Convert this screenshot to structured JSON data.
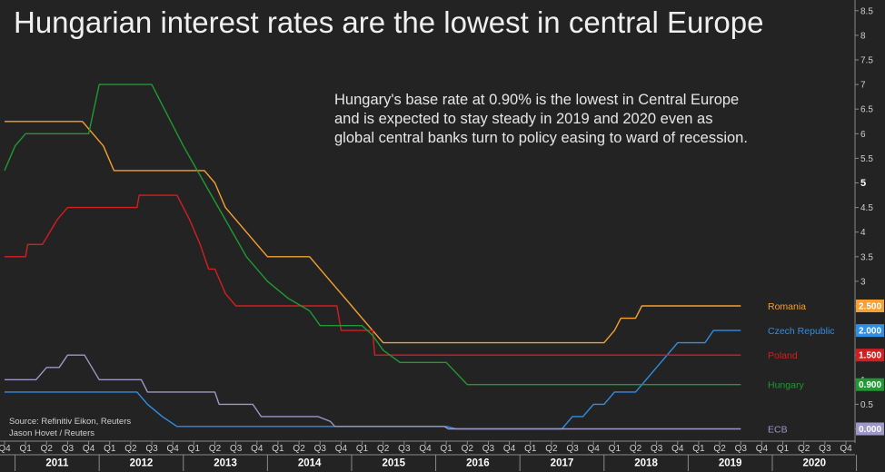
{
  "title": "Hungarian interest rates are the lowest in central Europe",
  "annotation": [
    "Hungary's base rate at 0.90% is the lowest in Central Europe",
    "and is expected to stay steady in 2019 and 2020 even as",
    "global central banks turn to policy easing to ward of recession."
  ],
  "source": [
    "Source: Refinitiv Eikon, Reuters",
    "Jason Hovet / Reuters"
  ],
  "chart_data": {
    "type": "line",
    "y_ticks": [
      "0",
      "0.5",
      "1",
      "1.5",
      "2",
      "2.5",
      "3",
      "3.5",
      "4",
      "4.5",
      "5",
      "5.5",
      "6",
      "6.5",
      "7",
      "7.5",
      "8",
      "8.5"
    ],
    "ylim": [
      0,
      8.5
    ],
    "x_quarters": [
      "Q4",
      "Q1",
      "Q2",
      "Q3",
      "Q4",
      "Q1",
      "Q2",
      "Q3",
      "Q4",
      "Q1",
      "Q2",
      "Q3",
      "Q4",
      "Q1",
      "Q2",
      "Q3",
      "Q4",
      "Q1",
      "Q2",
      "Q3",
      "Q4",
      "Q1",
      "Q2",
      "Q3",
      "Q4",
      "Q1",
      "Q2",
      "Q3",
      "Q4",
      "Q1",
      "Q2",
      "Q3",
      "Q4",
      "Q1",
      "Q2",
      "Q3",
      "Q4",
      "Q1",
      "Q2",
      "Q3",
      "Q4"
    ],
    "x_years": [
      {
        "label": "2011",
        "start": 1,
        "end": 4
      },
      {
        "label": "2012",
        "start": 5,
        "end": 8
      },
      {
        "label": "2013",
        "start": 9,
        "end": 12
      },
      {
        "label": "2014",
        "start": 13,
        "end": 16
      },
      {
        "label": "2015",
        "start": 17,
        "end": 20
      },
      {
        "label": "2016",
        "start": 21,
        "end": 24
      },
      {
        "label": "2017",
        "start": 25,
        "end": 28
      },
      {
        "label": "2018",
        "start": 29,
        "end": 32
      },
      {
        "label": "2019",
        "start": 33,
        "end": 36
      },
      {
        "label": "2020",
        "start": 37,
        "end": 40
      }
    ],
    "series": [
      {
        "name": "Romania",
        "color": "#f5a030",
        "last_label": "2.500",
        "points": [
          [
            0,
            6.25
          ],
          [
            3.7,
            6.25
          ],
          [
            4.2,
            6
          ],
          [
            4.7,
            5.75
          ],
          [
            5.2,
            5.25
          ],
          [
            9.5,
            5.25
          ],
          [
            10,
            5
          ],
          [
            10.5,
            4.5
          ],
          [
            11,
            4.25
          ],
          [
            11.5,
            4
          ],
          [
            12,
            3.75
          ],
          [
            12.5,
            3.5
          ],
          [
            14.5,
            3.5
          ],
          [
            15,
            3.25
          ],
          [
            15.5,
            3
          ],
          [
            16,
            2.75
          ],
          [
            16.5,
            2.5
          ],
          [
            17,
            2.25
          ],
          [
            17.5,
            2
          ],
          [
            18,
            1.75
          ],
          [
            28.5,
            1.75
          ],
          [
            29,
            2
          ],
          [
            29.3,
            2.25
          ],
          [
            30,
            2.25
          ],
          [
            30.3,
            2.5
          ],
          [
            35,
            2.5
          ]
        ]
      },
      {
        "name": "Czech Republic",
        "color": "#2f8ee6",
        "last_label": "2.000",
        "points": [
          [
            0,
            0.75
          ],
          [
            6.3,
            0.75
          ],
          [
            6.8,
            0.5
          ],
          [
            7.5,
            0.25
          ],
          [
            8.2,
            0.05
          ],
          [
            21,
            0.05
          ],
          [
            21.5,
            0
          ],
          [
            26.5,
            0
          ],
          [
            27,
            0.25
          ],
          [
            27.5,
            0.25
          ],
          [
            28,
            0.5
          ],
          [
            28.5,
            0.5
          ],
          [
            29,
            0.75
          ],
          [
            30,
            0.75
          ],
          [
            30.5,
            1
          ],
          [
            31,
            1.25
          ],
          [
            31.5,
            1.5
          ],
          [
            32,
            1.75
          ],
          [
            33.3,
            1.75
          ],
          [
            33.7,
            2
          ],
          [
            35,
            2
          ]
        ]
      },
      {
        "name": "Poland",
        "color": "#d21f1f",
        "last_label": "1.500",
        "points": [
          [
            0,
            3.5
          ],
          [
            1,
            3.5
          ],
          [
            1.1,
            3.75
          ],
          [
            1.8,
            3.75
          ],
          [
            2.5,
            4.25
          ],
          [
            3,
            4.5
          ],
          [
            6.3,
            4.5
          ],
          [
            6.4,
            4.75
          ],
          [
            8.2,
            4.75
          ],
          [
            8.8,
            4.25
          ],
          [
            9.3,
            3.75
          ],
          [
            9.7,
            3.25
          ],
          [
            10,
            3.25
          ],
          [
            10.5,
            2.75
          ],
          [
            11,
            2.5
          ],
          [
            15.8,
            2.5
          ],
          [
            16,
            2
          ],
          [
            17.5,
            2
          ],
          [
            17.6,
            1.5
          ],
          [
            35,
            1.5
          ]
        ]
      },
      {
        "name": "Hungary",
        "color": "#1f9a33",
        "last_label": "0.900",
        "points": [
          [
            0,
            5.25
          ],
          [
            0.5,
            5.75
          ],
          [
            1,
            6
          ],
          [
            4,
            6
          ],
          [
            4.5,
            7
          ],
          [
            7,
            7
          ],
          [
            7.6,
            6.5
          ],
          [
            8.5,
            5.75
          ],
          [
            9.5,
            5
          ],
          [
            10.5,
            4.25
          ],
          [
            11.5,
            3.5
          ],
          [
            12.5,
            3
          ],
          [
            13.5,
            2.65
          ],
          [
            14.5,
            2.4
          ],
          [
            15,
            2.1
          ],
          [
            17,
            2.1
          ],
          [
            17.5,
            1.9
          ],
          [
            18,
            1.6
          ],
          [
            18.8,
            1.35
          ],
          [
            21,
            1.35
          ],
          [
            22,
            0.9
          ],
          [
            35,
            0.9
          ]
        ]
      },
      {
        "name": "ECB",
        "color": "#9d97c8",
        "last_label": "0.000",
        "points": [
          [
            0,
            1
          ],
          [
            1.5,
            1
          ],
          [
            2,
            1.25
          ],
          [
            2.6,
            1.25
          ],
          [
            3,
            1.5
          ],
          [
            3.8,
            1.5
          ],
          [
            4.5,
            1
          ],
          [
            6.5,
            1
          ],
          [
            6.8,
            0.75
          ],
          [
            10,
            0.75
          ],
          [
            10.2,
            0.5
          ],
          [
            11.8,
            0.5
          ],
          [
            12.2,
            0.25
          ],
          [
            14.9,
            0.25
          ],
          [
            15.5,
            0.15
          ],
          [
            15.7,
            0.05
          ],
          [
            20.9,
            0.05
          ],
          [
            21.1,
            0
          ],
          [
            35,
            0
          ]
        ]
      }
    ]
  }
}
